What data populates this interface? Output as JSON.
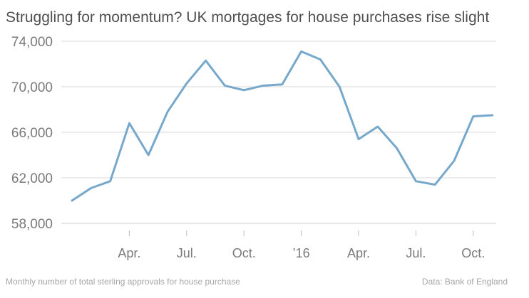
{
  "chart_data": {
    "type": "line",
    "title": "Struggling for momentum? UK mortgages for house purchases rise slight",
    "xlabel": "",
    "ylabel": "",
    "x_tick_labels": [
      {
        "label": "Apr.",
        "index": 3
      },
      {
        "label": "Jul.",
        "index": 6
      },
      {
        "label": "Oct.",
        "index": 9
      },
      {
        "label": "’16",
        "index": 12
      },
      {
        "label": "Apr.",
        "index": 15
      },
      {
        "label": "Jul.",
        "index": 18
      },
      {
        "label": "Oct.",
        "index": 21
      }
    ],
    "y_ticks": [
      "58,000",
      "62,000",
      "66,000",
      "70,000",
      "74,000"
    ],
    "ylim": [
      58000,
      74000
    ],
    "grid": "horizontal",
    "line_color": "#76a8cc",
    "grid_color": "#d9d9d9",
    "series": [
      {
        "values": [
          60000,
          61100,
          61700,
          66800,
          64000,
          67800,
          70300,
          72300,
          70100,
          69700,
          70100,
          70200,
          73100,
          72400,
          70000,
          65400,
          66500,
          64600,
          61700,
          61400,
          63500,
          67400,
          67500
        ]
      }
    ]
  },
  "footer": {
    "note": "Monthly number of total sterling approvals for house purchase",
    "source": "Data: Bank of England"
  }
}
